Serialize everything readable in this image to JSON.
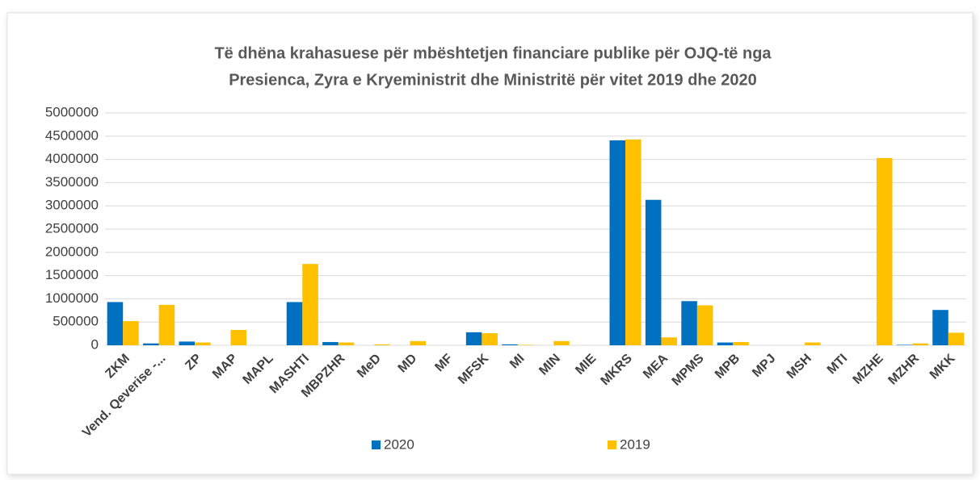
{
  "chart_data": {
    "type": "bar",
    "title": [
      "Të dhëna krahasuese për mbështetjen financiare publike për OJQ-të nga",
      "Presienca, Zyra e Kryeministrit dhe Ministritë për vitet 2019 dhe 2020"
    ],
    "categories": [
      "ZKM",
      "Vend. Qeverise -...",
      "ZP",
      "MAP",
      "MAPL",
      "MASHTI",
      "MBPZHR",
      "MeD",
      "MD",
      "MF",
      "MFSK",
      "MI",
      "MIN",
      "MIE",
      "MKRS",
      "MEA",
      "MPMS",
      "MPB",
      "MPJ",
      "MSH",
      "MTI",
      "MZHE",
      "MZHR",
      "MKK"
    ],
    "series": [
      {
        "name": "2020",
        "color": "#0070c0",
        "values": [
          930000,
          40000,
          80000,
          0,
          0,
          930000,
          70000,
          0,
          0,
          0,
          280000,
          20000,
          0,
          0,
          4410000,
          3130000,
          950000,
          60000,
          0,
          0,
          0,
          0,
          10000,
          760000
        ]
      },
      {
        "name": "2019",
        "color": "#ffc000",
        "values": [
          520000,
          870000,
          60000,
          330000,
          0,
          1750000,
          60000,
          20000,
          90000,
          0,
          260000,
          10000,
          90000,
          0,
          4430000,
          170000,
          860000,
          70000,
          0,
          60000,
          0,
          4030000,
          40000,
          270000
        ]
      }
    ],
    "ylim": [
      0,
      5000000
    ],
    "yticks": [
      0,
      500000,
      1000000,
      1500000,
      2000000,
      2500000,
      3000000,
      3500000,
      4000000,
      4500000,
      5000000
    ],
    "grid": true,
    "legend": "bottom"
  }
}
